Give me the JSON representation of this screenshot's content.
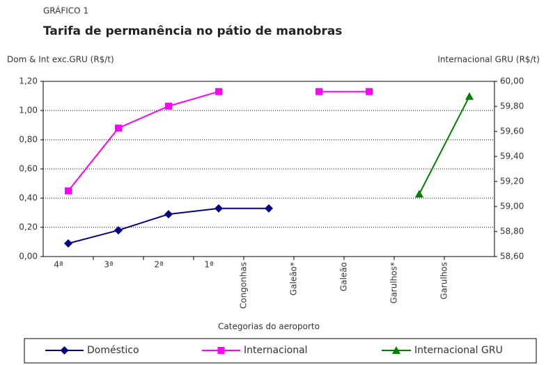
{
  "chart_data": {
    "type": "line",
    "supertitle": "GRÁFICO 1",
    "title": "Tarifa de permanência no pátio de manobras",
    "ylabel": "Dom & Int exc.GRU (R$/t)",
    "y2label": "Internacional GRU (R$/t)",
    "xlabel": "Categorias do aeroporto",
    "categories": [
      "4ª",
      "3ª",
      "2ª",
      "1ª",
      "Congonhas",
      "Galeão*",
      "Galeão",
      "Garulhos*",
      "Garulhos"
    ],
    "series": [
      {
        "name": "Doméstico",
        "color": "#000080",
        "marker": "diamond",
        "values": [
          0.09,
          0.18,
          0.29,
          0.33,
          0.33,
          null,
          null,
          null,
          null
        ]
      },
      {
        "name": "Internacional",
        "color": "#ff00ff",
        "marker": "square",
        "values": [
          0.45,
          0.88,
          1.03,
          1.13,
          null,
          1.13,
          1.13,
          null,
          null
        ]
      },
      {
        "name": "Internacional GRU",
        "color": "#008000",
        "marker": "triangle",
        "axis": "y2",
        "values": [
          null,
          null,
          null,
          null,
          null,
          null,
          null,
          59.1,
          59.88
        ]
      }
    ],
    "ylim": [
      0,
      1.2
    ],
    "yticks": [
      {
        "value": 0,
        "label": "0,00"
      },
      {
        "value": 0.2,
        "label": "0,20"
      },
      {
        "value": 0.4,
        "label": "0,40"
      },
      {
        "value": 0.6,
        "label": "0,60"
      },
      {
        "value": 0.8,
        "label": "0,80"
      },
      {
        "value": 1,
        "label": "1,00"
      },
      {
        "value": 1.2,
        "label": "1,20"
      }
    ],
    "y2lim": [
      58.6,
      60
    ],
    "y2ticks": [
      {
        "value": 58.6,
        "label": "58,60"
      },
      {
        "value": 58.8,
        "label": "58,80"
      },
      {
        "value": 59,
        "label": "59,00"
      },
      {
        "value": 59.2,
        "label": "59,20"
      },
      {
        "value": 59.4,
        "label": "59,40"
      },
      {
        "value": 59.6,
        "label": "59,60"
      },
      {
        "value": 59.8,
        "label": "59,80"
      },
      {
        "value": 60,
        "label": "60,00"
      }
    ],
    "grid": true
  }
}
